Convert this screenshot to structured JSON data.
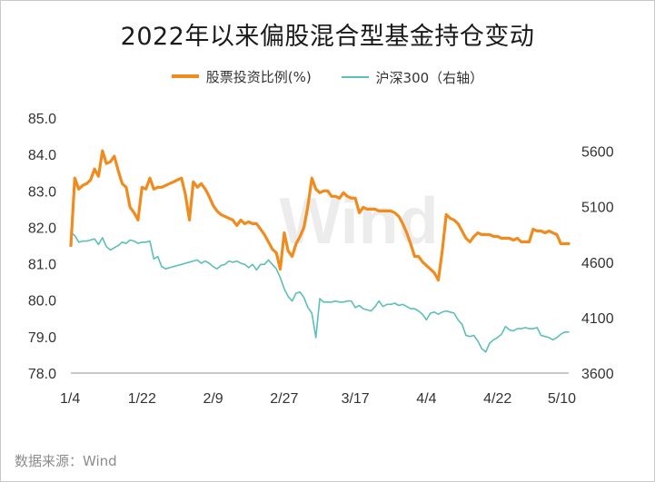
{
  "chart_data": {
    "type": "line",
    "title": "2022年以来偏股混合型基金持仓变动",
    "x_tick_labels": [
      "1/4",
      "1/22",
      "2/9",
      "2/27",
      "3/17",
      "4/4",
      "4/22",
      "5/10"
    ],
    "x_range": [
      0,
      126
    ],
    "left_axis": {
      "ylim": [
        78.0,
        85.0
      ],
      "ticks": [
        "85.0",
        "84.0",
        "83.0",
        "82.0",
        "81.0",
        "80.0",
        "79.0",
        "78.0"
      ]
    },
    "right_axis": {
      "ylim": [
        3600,
        5900
      ],
      "ticks": [
        "5600",
        "5100",
        "4600",
        "4100",
        "3600"
      ]
    },
    "series": [
      {
        "name": "股票投资比例(%)",
        "axis": "left",
        "color": "#F08C1E",
        "x": [
          0,
          1,
          2,
          3,
          4,
          5,
          6,
          7,
          8,
          9,
          10,
          11,
          12,
          13,
          14,
          15,
          16,
          17,
          18,
          19,
          20,
          21,
          22,
          23,
          24,
          25,
          26,
          27,
          28,
          29,
          30,
          31,
          32,
          33,
          34,
          35,
          36,
          37,
          38,
          39,
          40,
          41,
          42,
          43,
          44,
          45,
          46,
          47,
          48,
          49,
          50,
          51,
          52,
          53,
          54,
          55,
          56,
          57,
          58,
          59,
          60,
          61,
          62,
          63,
          64,
          65,
          66,
          67,
          68,
          69,
          70,
          71,
          72,
          73,
          74,
          75,
          76,
          77,
          78,
          79,
          80,
          81,
          82,
          83,
          84,
          85,
          86,
          87,
          88,
          89,
          90,
          91,
          92,
          93,
          94,
          95,
          96,
          97,
          98,
          99,
          100,
          101,
          102,
          103,
          104,
          105,
          106,
          107,
          108,
          109,
          110,
          111,
          112,
          113,
          114,
          115,
          116,
          117,
          118,
          119,
          120,
          121,
          122,
          123,
          124,
          125,
          126
        ],
        "values": [
          81.5,
          83.35,
          83.05,
          83.15,
          83.2,
          83.3,
          83.6,
          83.4,
          84.1,
          83.75,
          83.8,
          83.95,
          83.55,
          83.2,
          83.1,
          82.55,
          82.4,
          82.2,
          83.1,
          83.05,
          83.35,
          83.05,
          83.1,
          83.1,
          83.15,
          83.2,
          83.25,
          83.3,
          83.35,
          82.9,
          82.2,
          83.25,
          83.1,
          83.2,
          83.05,
          82.85,
          82.6,
          82.45,
          82.35,
          82.3,
          82.25,
          82.2,
          82.05,
          82.2,
          82.1,
          82.15,
          82.1,
          82.1,
          81.95,
          81.8,
          81.6,
          81.4,
          81.3,
          80.85,
          81.85,
          81.35,
          81.2,
          81.55,
          81.75,
          82.0,
          82.6,
          83.35,
          83.05,
          82.95,
          83.0,
          83.0,
          82.85,
          82.85,
          82.8,
          82.95,
          82.85,
          82.8,
          82.8,
          82.4,
          82.55,
          82.5,
          82.5,
          82.5,
          82.45,
          82.45,
          82.45,
          82.45,
          82.4,
          82.3,
          82.1,
          81.85,
          81.55,
          81.2,
          81.2,
          81.05,
          80.95,
          80.85,
          80.75,
          80.55,
          81.35,
          82.35,
          82.25,
          82.2,
          82.1,
          81.9,
          81.7,
          81.6,
          81.75,
          81.85,
          81.8,
          81.8,
          81.8,
          81.75,
          81.75,
          81.7,
          81.7,
          81.7,
          81.65,
          81.7,
          81.6,
          81.6,
          81.6,
          81.95,
          81.9,
          81.9,
          81.85,
          81.9,
          81.85,
          81.8,
          81.55,
          81.55,
          81.55
        ]
      },
      {
        "name": "沪深300（右轴）",
        "axis": "right",
        "color": "#5BBFBA",
        "x": [
          0,
          1,
          2,
          3,
          4,
          5,
          6,
          7,
          8,
          9,
          10,
          11,
          12,
          13,
          14,
          15,
          16,
          17,
          18,
          19,
          20,
          21,
          22,
          23,
          24,
          25,
          26,
          27,
          28,
          29,
          30,
          31,
          32,
          33,
          34,
          35,
          36,
          37,
          38,
          39,
          40,
          41,
          42,
          43,
          44,
          45,
          46,
          47,
          48,
          49,
          50,
          51,
          52,
          53,
          54,
          55,
          56,
          57,
          58,
          59,
          60,
          61,
          62,
          63,
          64,
          65,
          66,
          67,
          68,
          69,
          70,
          71,
          72,
          73,
          74,
          75,
          76,
          77,
          78,
          79,
          80,
          81,
          82,
          83,
          84,
          85,
          86,
          87,
          88,
          89,
          90,
          91,
          92,
          93,
          94,
          95,
          96,
          97,
          98,
          99,
          100,
          101,
          102,
          103,
          104,
          105,
          106,
          107,
          108,
          109,
          110,
          111,
          112,
          113,
          114,
          115,
          116,
          117,
          118,
          119,
          120,
          121,
          122,
          123,
          124,
          125,
          126
        ],
        "values": [
          4870,
          4840,
          4780,
          4790,
          4790,
          4800,
          4810,
          4760,
          4820,
          4740,
          4710,
          4730,
          4750,
          4780,
          4770,
          4800,
          4790,
          4770,
          4780,
          4780,
          4790,
          4630,
          4650,
          4560,
          4540,
          4550,
          4560,
          4570,
          4580,
          4590,
          4600,
          4610,
          4620,
          4590,
          4610,
          4590,
          4560,
          4540,
          4570,
          4580,
          4610,
          4600,
          4610,
          4590,
          4580,
          4550,
          4580,
          4530,
          4580,
          4580,
          4620,
          4580,
          4540,
          4460,
          4360,
          4290,
          4250,
          4320,
          4330,
          4280,
          4190,
          4140,
          3920,
          4270,
          4240,
          4240,
          4240,
          4250,
          4240,
          4240,
          4250,
          4250,
          4190,
          4210,
          4180,
          4170,
          4160,
          4200,
          4250,
          4200,
          4220,
          4220,
          4230,
          4210,
          4220,
          4200,
          4180,
          4180,
          4160,
          4130,
          4080,
          4140,
          4150,
          4130,
          4150,
          4160,
          4150,
          4140,
          4080,
          4040,
          3940,
          3930,
          3940,
          3890,
          3820,
          3790,
          3870,
          3900,
          3920,
          3950,
          4020,
          3990,
          3980,
          4000,
          4000,
          4010,
          4000,
          4000,
          4010,
          3940,
          3930,
          3920,
          3900,
          3920,
          3950,
          3970,
          3970
        ]
      }
    ]
  },
  "legend": {
    "items": [
      "股票投资比例(%)",
      "沪深300（右轴）"
    ]
  },
  "source": "数据来源：Wind",
  "watermark": "Wind"
}
